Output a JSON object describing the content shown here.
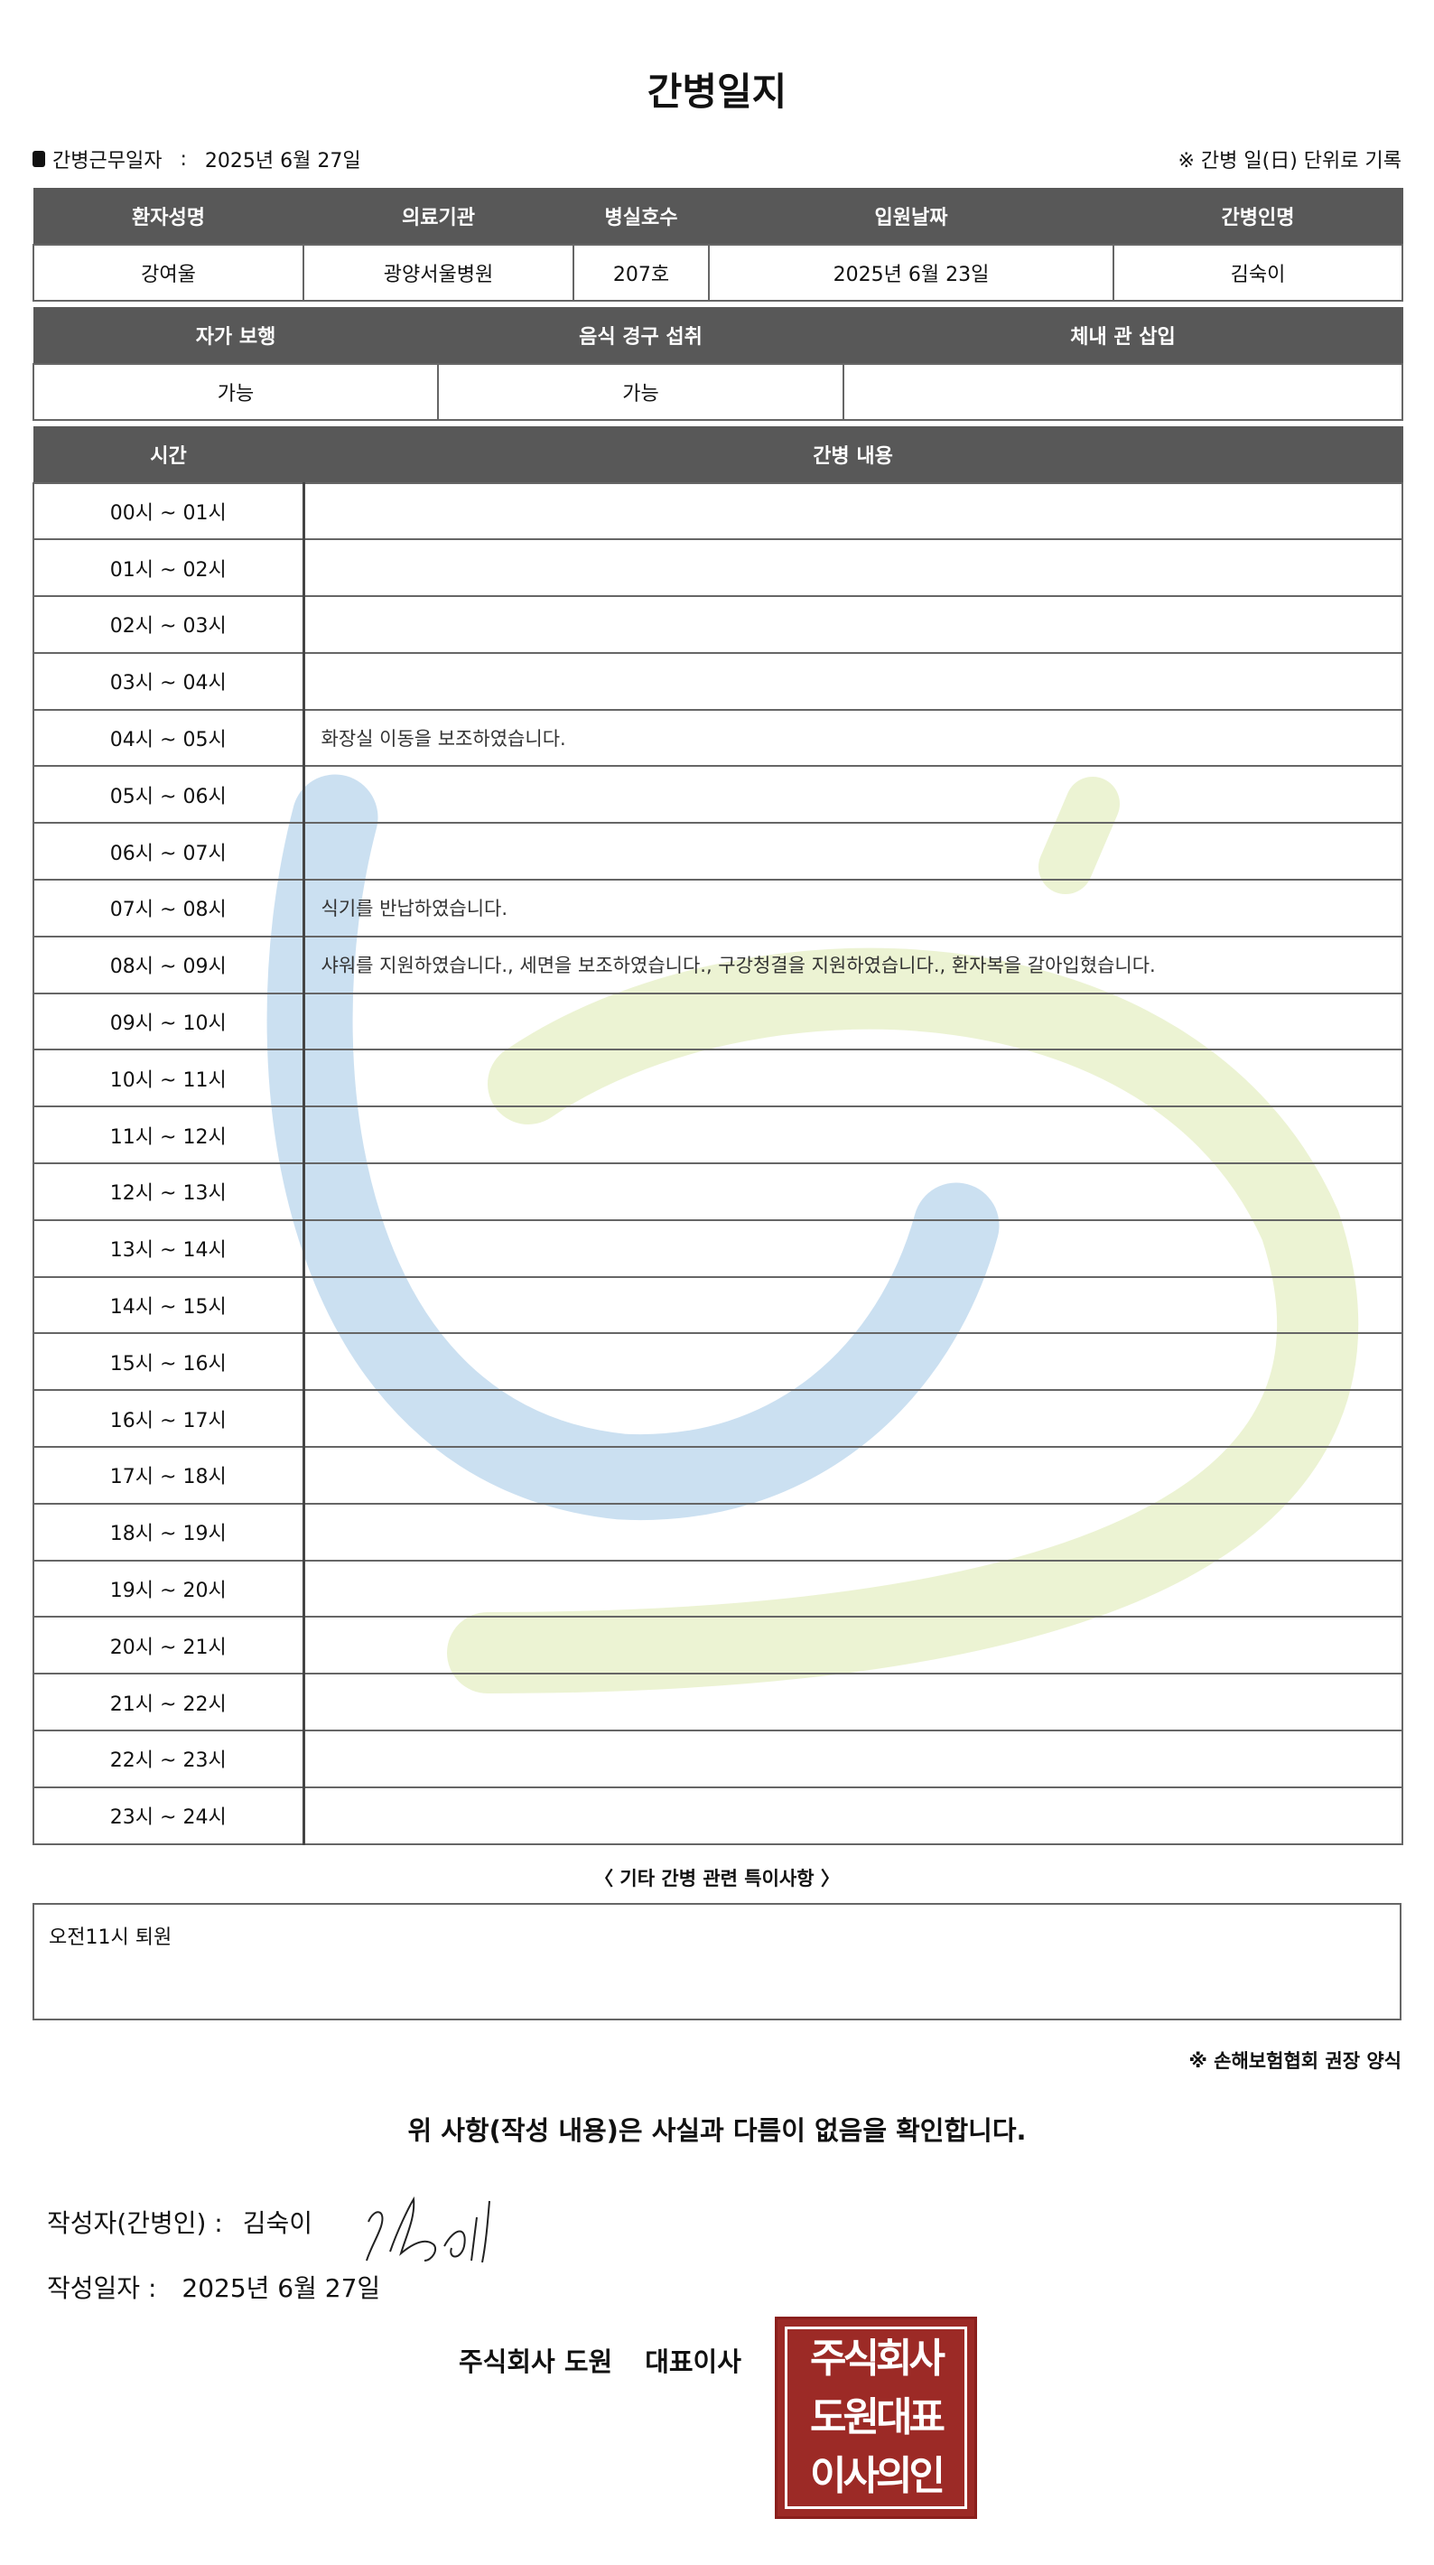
{
  "title": "간병일지",
  "work_date": {
    "label": "간병근무일자",
    "separator": ":",
    "value": "2025년 6월 27일"
  },
  "record_note": "※ 간병 일(日) 단위로 기록",
  "patient_table": {
    "headers": [
      "환자성명",
      "의료기관",
      "병실호수",
      "입원날짜",
      "간병인명"
    ],
    "values": [
      "강여울",
      "광양서울병원",
      "207호",
      "2025년 6월 23일",
      "김숙이"
    ]
  },
  "status_table": {
    "headers": [
      "자가 보행",
      "음식 경구 섭취",
      "체내 관 삽입"
    ],
    "values": [
      "가능",
      "가능",
      ""
    ]
  },
  "care_log": {
    "headers": [
      "시간",
      "간병 내용"
    ],
    "rows": [
      {
        "time": "00시 ~ 01시",
        "content": ""
      },
      {
        "time": "01시 ~ 02시",
        "content": ""
      },
      {
        "time": "02시 ~ 03시",
        "content": ""
      },
      {
        "time": "03시 ~ 04시",
        "content": ""
      },
      {
        "time": "04시 ~ 05시",
        "content": "화장실 이동을 보조하였습니다."
      },
      {
        "time": "05시 ~ 06시",
        "content": ""
      },
      {
        "time": "06시 ~ 07시",
        "content": ""
      },
      {
        "time": "07시 ~ 08시",
        "content": "식기를 반납하였습니다."
      },
      {
        "time": "08시 ~ 09시",
        "content": "샤워를 지원하였습니다., 세면을 보조하였습니다., 구강청결을 지원하였습니다., 환자복을 갈아입혔습니다."
      },
      {
        "time": "09시 ~ 10시",
        "content": ""
      },
      {
        "time": "10시 ~ 11시",
        "content": ""
      },
      {
        "time": "11시 ~ 12시",
        "content": ""
      },
      {
        "time": "12시 ~ 13시",
        "content": ""
      },
      {
        "time": "13시 ~ 14시",
        "content": ""
      },
      {
        "time": "14시 ~ 15시",
        "content": ""
      },
      {
        "time": "15시 ~ 16시",
        "content": ""
      },
      {
        "time": "16시 ~ 17시",
        "content": ""
      },
      {
        "time": "17시 ~ 18시",
        "content": ""
      },
      {
        "time": "18시 ~ 19시",
        "content": ""
      },
      {
        "time": "19시 ~ 20시",
        "content": ""
      },
      {
        "time": "20시 ~ 21시",
        "content": ""
      },
      {
        "time": "21시 ~ 22시",
        "content": ""
      },
      {
        "time": "22시 ~ 23시",
        "content": ""
      },
      {
        "time": "23시 ~ 24시",
        "content": ""
      }
    ]
  },
  "notes": {
    "title": "〈 기타 간병 관련 특이사항 〉",
    "content": "오전11시 퇴원"
  },
  "footnote": "※ 손해보험협회 권장 양식",
  "confirmation": "위 사항(작성 내용)은 사실과 다름이 없음을 확인합니다.",
  "writer": {
    "label": "작성자(간병인) :",
    "value": "김숙이"
  },
  "written_date": {
    "label": "작성일자 :",
    "value": "2025년 6월 27일"
  },
  "company": {
    "name": "주식회사 도원",
    "representative": "대표이사"
  },
  "seal": {
    "lines": [
      "주식회사",
      "도원대표",
      "이사의인"
    ],
    "color": "#9c2a26"
  },
  "watermark_colors": {
    "blue": "#b9d6ec",
    "green": "#e6efc4"
  },
  "header_color": "#585858"
}
